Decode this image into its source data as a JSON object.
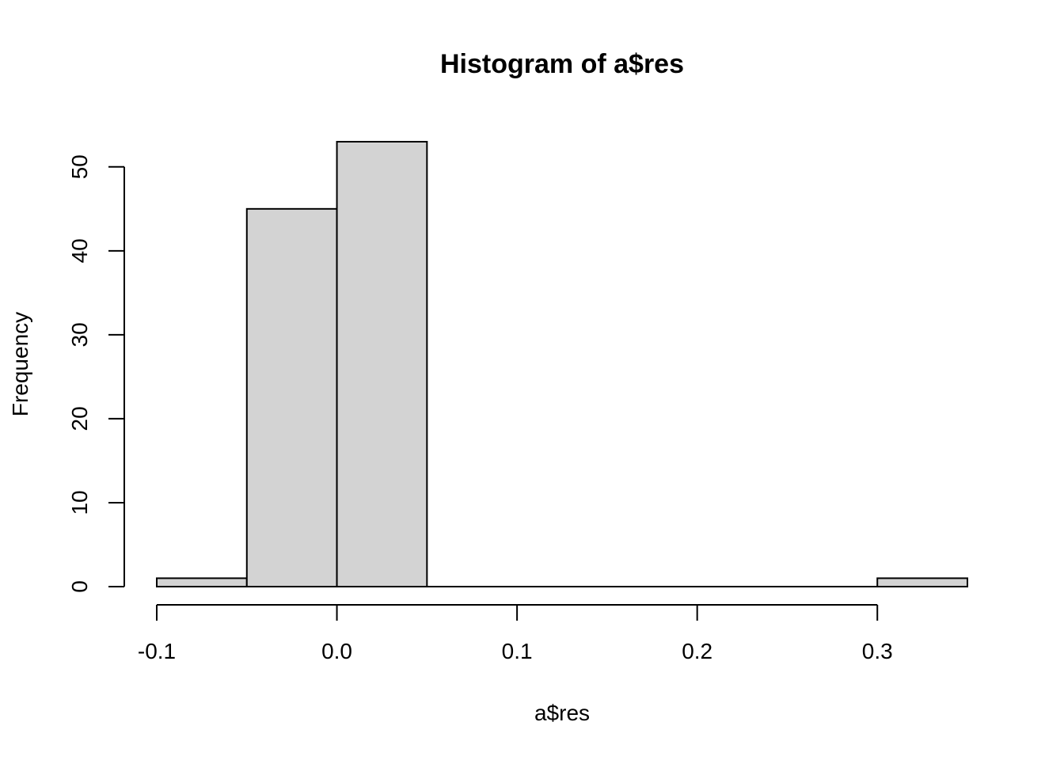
{
  "chart_data": {
    "type": "bar",
    "title": "Histogram of a$res",
    "xlabel": "a$res",
    "ylabel": "Frequency",
    "bins": [
      {
        "start": -0.1,
        "end": -0.05,
        "count": 1
      },
      {
        "start": -0.05,
        "end": 0.0,
        "count": 45
      },
      {
        "start": 0.0,
        "end": 0.05,
        "count": 53
      },
      {
        "start": 0.05,
        "end": 0.1,
        "count": 0
      },
      {
        "start": 0.1,
        "end": 0.15,
        "count": 0
      },
      {
        "start": 0.15,
        "end": 0.2,
        "count": 0
      },
      {
        "start": 0.2,
        "end": 0.25,
        "count": 0
      },
      {
        "start": 0.25,
        "end": 0.3,
        "count": 0
      },
      {
        "start": 0.3,
        "end": 0.35,
        "count": 1
      }
    ],
    "xlim": [
      -0.1,
      0.35
    ],
    "ylim": [
      0,
      53
    ],
    "x_ticks": [
      {
        "value": -0.1,
        "label": "-0.1"
      },
      {
        "value": 0.0,
        "label": "0.0"
      },
      {
        "value": 0.1,
        "label": "0.1"
      },
      {
        "value": 0.2,
        "label": "0.2"
      },
      {
        "value": 0.3,
        "label": "0.3"
      }
    ],
    "y_ticks": [
      {
        "value": 0,
        "label": "0"
      },
      {
        "value": 10,
        "label": "10"
      },
      {
        "value": 20,
        "label": "20"
      },
      {
        "value": 30,
        "label": "30"
      },
      {
        "value": 40,
        "label": "40"
      },
      {
        "value": 50,
        "label": "50"
      }
    ],
    "grid": false,
    "bar_color": "#d3d3d3",
    "edge_color": "#000000"
  }
}
